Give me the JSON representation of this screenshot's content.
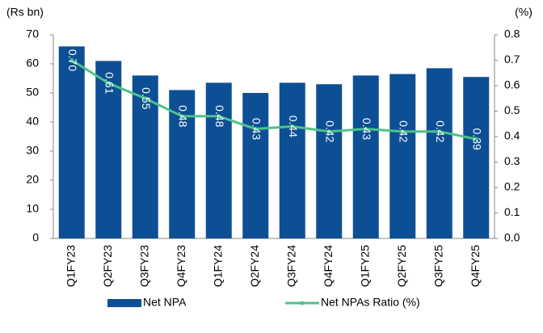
{
  "chart_data": {
    "type": "combo",
    "y_label": "(Rs bn)",
    "y2_label": "(%)",
    "categories": [
      "Q1FY23",
      "Q2FY23",
      "Q3FY23",
      "Q4FY23",
      "Q1FY24",
      "Q2FY24",
      "Q3FY24",
      "Q4FY24",
      "Q1FY25",
      "Q2FY25",
      "Q3FY25",
      "Q4FY25"
    ],
    "series": [
      {
        "name": "Net NPA",
        "type": "bar",
        "color": "#0d4f94",
        "axis": "y",
        "values": [
          66,
          61,
          56,
          51,
          53.5,
          50,
          53.5,
          53,
          56,
          56.5,
          58.5,
          55.5
        ]
      },
      {
        "name": "Net NPAs Ratio (%)",
        "type": "line",
        "color": "#4cc38a",
        "axis": "y2",
        "values": [
          0.7,
          0.61,
          0.55,
          0.48,
          0.48,
          0.43,
          0.44,
          0.42,
          0.43,
          0.42,
          0.42,
          0.39
        ],
        "value_labels": [
          "0.70",
          "0.61",
          "0.55",
          "0.48",
          "0.48",
          "0.43",
          "0.44",
          "0.42",
          "0.43",
          "0.42",
          "0.42",
          "0.39"
        ]
      }
    ],
    "ylim": [
      0,
      70
    ],
    "yticks": [
      0,
      10,
      20,
      30,
      40,
      50,
      60,
      70
    ],
    "y2lim": [
      0,
      0.8
    ],
    "y2ticks": [
      {
        "value": 0,
        "label": "0.0"
      },
      0.1,
      0.2,
      0.3,
      0.4,
      0.5,
      0.6,
      0.7,
      0.8
    ],
    "legend": "bottom"
  }
}
